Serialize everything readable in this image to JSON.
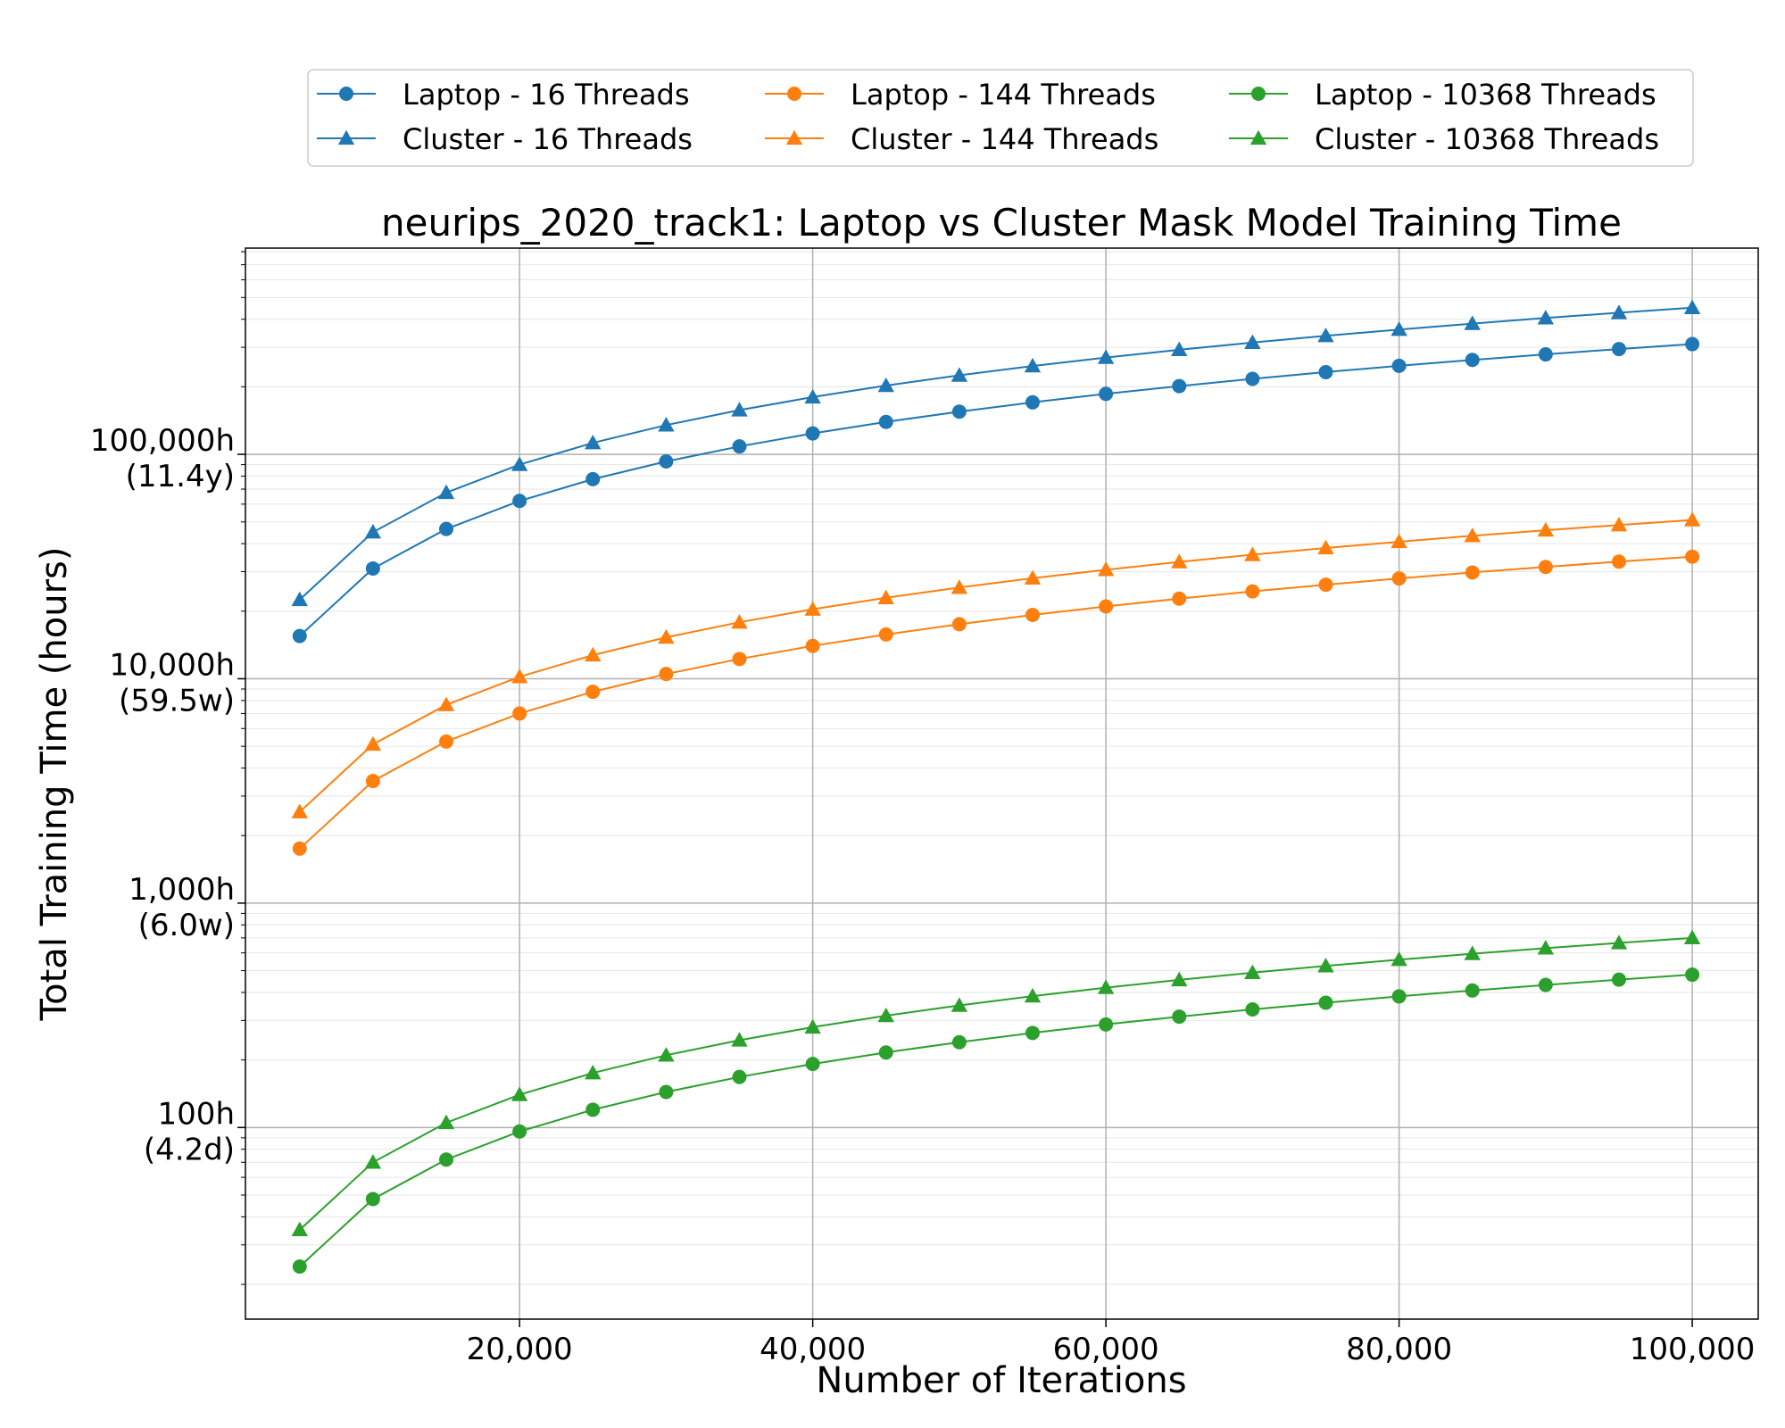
{
  "chart_data": {
    "type": "line",
    "title": "neurips_2020_track1: Laptop vs Cluster Mask Model Training Time",
    "xlabel": "Number of Iterations",
    "ylabel": "Total Training Time (hours)",
    "y_scale": "log",
    "xlim": [
      1300,
      104500
    ],
    "ylim": [
      14,
      830000
    ],
    "grid": true,
    "legend_position": "top-center",
    "x_ticks": [
      {
        "value": 20000,
        "label": "20,000"
      },
      {
        "value": 40000,
        "label": "40,000"
      },
      {
        "value": 60000,
        "label": "60,000"
      },
      {
        "value": 80000,
        "label": "80,000"
      },
      {
        "value": 100000,
        "label": "100,000"
      }
    ],
    "y_ticks": [
      {
        "value": 100,
        "label": "100h",
        "sublabel": "(4.2d)"
      },
      {
        "value": 1000,
        "label": "1,000h",
        "sublabel": "(6.0w)"
      },
      {
        "value": 10000,
        "label": "10,000h",
        "sublabel": "(59.5w)"
      },
      {
        "value": 100000,
        "label": "100,000h",
        "sublabel": "(11.4y)"
      }
    ],
    "x": [
      5000,
      10000,
      15000,
      20000,
      25000,
      30000,
      35000,
      40000,
      45000,
      50000,
      55000,
      60000,
      65000,
      70000,
      75000,
      80000,
      85000,
      90000,
      95000,
      100000
    ],
    "series": [
      {
        "name": "Laptop - 16 Threads",
        "color": "#1f77b4",
        "marker": "circle",
        "values": [
          15500,
          31000,
          46500,
          62000,
          77500,
          93000,
          108500,
          124000,
          139500,
          155000,
          170500,
          186000,
          201500,
          217000,
          232500,
          248000,
          263500,
          279000,
          294500,
          310000
        ]
      },
      {
        "name": "Cluster - 16 Threads",
        "color": "#1f77b4",
        "marker": "triangle",
        "values": [
          22500,
          45000,
          67500,
          90000,
          112500,
          135000,
          157500,
          180000,
          202500,
          225000,
          247500,
          270000,
          292500,
          315000,
          337500,
          360000,
          382500,
          405000,
          427500,
          450000
        ]
      },
      {
        "name": "Laptop - 144 Threads",
        "color": "#ff7f0e",
        "marker": "circle",
        "values": [
          1750,
          3500,
          5250,
          7000,
          8750,
          10500,
          12250,
          14000,
          15750,
          17500,
          19250,
          21000,
          22750,
          24500,
          26250,
          28000,
          29750,
          31500,
          33250,
          35000
        ]
      },
      {
        "name": "Cluster - 144 Threads",
        "color": "#ff7f0e",
        "marker": "triangle",
        "values": [
          2550,
          5100,
          7650,
          10200,
          12750,
          15300,
          17850,
          20400,
          22950,
          25500,
          28050,
          30600,
          33150,
          35700,
          38250,
          40800,
          43350,
          45900,
          48450,
          51000
        ]
      },
      {
        "name": "Laptop - 10368 Threads",
        "color": "#2ca02c",
        "marker": "circle",
        "values": [
          24,
          48,
          72,
          96,
          120,
          144,
          168,
          192,
          216,
          240,
          264,
          288,
          312,
          336,
          360,
          384,
          408,
          432,
          456,
          480
        ]
      },
      {
        "name": "Cluster - 10368 Threads",
        "color": "#2ca02c",
        "marker": "triangle",
        "values": [
          35,
          70,
          105,
          140,
          175,
          210,
          245,
          280,
          315,
          350,
          385,
          420,
          455,
          490,
          525,
          560,
          595,
          630,
          665,
          700
        ]
      }
    ]
  }
}
